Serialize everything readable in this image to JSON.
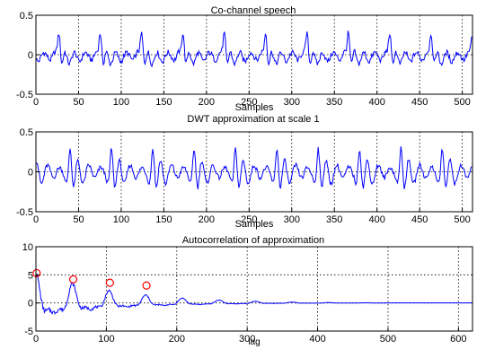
{
  "colors": {
    "background": "#ffffff",
    "signal": "#0000ff",
    "peak_marker": "#ff0000",
    "axis": "#000000",
    "grid": "#000000"
  },
  "chart_data": [
    {
      "type": "line",
      "title": "Co-channel speech",
      "xlabel": "Samples",
      "ylabel": "",
      "xlim": [
        0,
        512
      ],
      "ylim": [
        -0.5,
        0.5
      ],
      "xticks": [
        0,
        50,
        100,
        150,
        200,
        250,
        300,
        350,
        400,
        450,
        500
      ],
      "yticks": [
        -0.5,
        0,
        0.5
      ],
      "grid": "dotted",
      "series": [
        {
          "period": 48.5,
          "x0": 27,
          "n": 512,
          "baseline": -0.02,
          "pulse": [
            [
              0,
              0.3,
              1.4
            ],
            [
              3.5,
              -0.12,
              1.5
            ],
            [
              7,
              0.08,
              2.0
            ],
            [
              12,
              -0.1,
              2.6
            ],
            [
              18,
              0.06,
              2.4
            ],
            [
              24,
              -0.07,
              2.6
            ],
            [
              31,
              0.05,
              2.8
            ],
            [
              38,
              -0.05,
              2.5
            ],
            [
              44,
              0.06,
              2.2
            ]
          ],
          "ripple": 0.035
        }
      ]
    },
    {
      "type": "line",
      "title": "DWT approximation at scale 1",
      "xlabel": "Samples",
      "ylabel": "",
      "xlim": [
        0,
        512
      ],
      "ylim": [
        -0.5,
        0.5
      ],
      "xticks": [
        0,
        50,
        100,
        150,
        200,
        250,
        300,
        350,
        400,
        450,
        500
      ],
      "yticks": [
        -0.5,
        0,
        0.5
      ],
      "grid": "dotted",
      "series": [
        {
          "period": 48.5,
          "x0": 40,
          "n": 512,
          "baseline": 0.0,
          "pulse": [
            [
              -3,
              -0.14,
              1.8
            ],
            [
              0,
              0.36,
              1.8
            ],
            [
              4,
              -0.24,
              2.0
            ],
            [
              9,
              0.16,
              2.4
            ],
            [
              15,
              -0.16,
              2.6
            ],
            [
              22,
              0.09,
              2.8
            ],
            [
              29,
              -0.08,
              2.8
            ],
            [
              36,
              0.06,
              2.8
            ],
            [
              43,
              -0.06,
              2.6
            ]
          ],
          "ripple": 0.03
        }
      ]
    },
    {
      "type": "line",
      "title": "Autocorrelation of approximation",
      "xlabel": "lag",
      "ylabel": "",
      "xlim": [
        0,
        620
      ],
      "ylim": [
        -5,
        10
      ],
      "xticks": [
        0,
        100,
        200,
        300,
        400,
        500,
        600
      ],
      "yticks": [
        -5,
        0,
        5,
        10
      ],
      "grid": "dotted",
      "series": [
        {
          "period": 52,
          "n": 512,
          "decay": 160,
          "base_amp": 5.3,
          "peak_markers": [
            {
              "x": 1,
              "y": 5.3
            },
            {
              "x": 53,
              "y": 4.2
            },
            {
              "x": 105,
              "y": 3.6
            },
            {
              "x": 157,
              "y": 3.1
            }
          ]
        }
      ]
    }
  ]
}
